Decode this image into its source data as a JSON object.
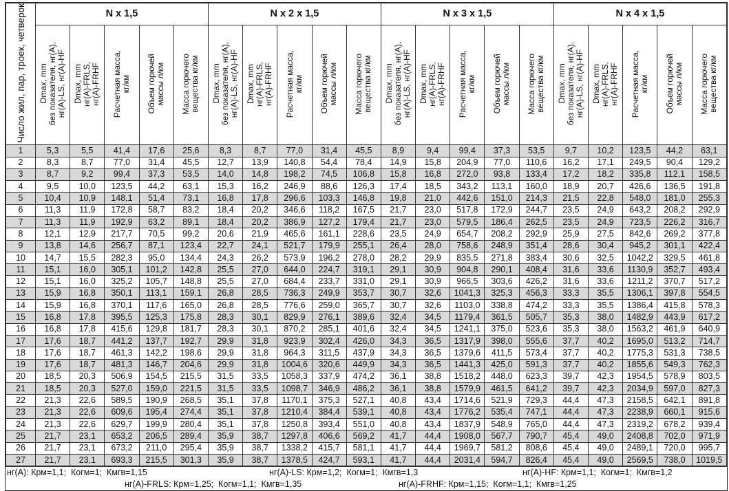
{
  "table": {
    "first_header": "Число жил, пар, троек, четверок",
    "groups": [
      "N x 1,5",
      "N x 2 x 1,5",
      "N x 3 x 1,5",
      "N x 4 x 1,5"
    ],
    "sub_headers": [
      "Dmax, mm\nбез показателя, нг(А),\nнг(А)-LS, нг(А)-HF",
      "Dmax, mm\nнг(А)-FRLS,\nнг(А)-FRHF",
      "Расчетная масса,\nкг/км",
      "Объем горючей\nмассы л/км",
      "Масса горючего\nвещества кг/км"
    ],
    "shade_color": "#d9d9d9",
    "rows": [
      [
        "1",
        "5,3",
        "5,5",
        "41,4",
        "17,6",
        "25,6",
        "8,3",
        "8,7",
        "77,0",
        "31,4",
        "45,5",
        "8,9",
        "9,4",
        "99,4",
        "37,3",
        "53,5",
        "9,7",
        "10,2",
        "123,5",
        "44,2",
        "63,1"
      ],
      [
        "2",
        "8,3",
        "8,7",
        "77,0",
        "31,4",
        "45,5",
        "12,7",
        "13,9",
        "140,8",
        "54,4",
        "78,4",
        "14,9",
        "15,8",
        "204,9",
        "77,0",
        "110,6",
        "16,2",
        "17,1",
        "249,5",
        "90,4",
        "129,2"
      ],
      [
        "3",
        "8,7",
        "9,2",
        "99,4",
        "37,3",
        "53,5",
        "14,0",
        "14,8",
        "198,2",
        "74,5",
        "106,8",
        "15,8",
        "16,8",
        "272,0",
        "93,8",
        "133,4",
        "17,2",
        "18,2",
        "335,8",
        "112,1",
        "158,5"
      ],
      [
        "4",
        "9,5",
        "10,0",
        "123,5",
        "44,2",
        "63,1",
        "15,3",
        "16,2",
        "246,9",
        "88,6",
        "126,3",
        "17,4",
        "18,5",
        "343,2",
        "113,1",
        "160,0",
        "18,9",
        "20,7",
        "426,6",
        "136,5",
        "191,8"
      ],
      [
        "5",
        "10,4",
        "10,9",
        "148,1",
        "51,4",
        "73,1",
        "16,8",
        "17,8",
        "296,6",
        "103,3",
        "146,8",
        "19,8",
        "21,0",
        "442,6",
        "151,0",
        "214,3",
        "21,5",
        "22,8",
        "548,0",
        "181,0",
        "255,3"
      ],
      [
        "6",
        "11,3",
        "11,9",
        "172,8",
        "58,7",
        "83,2",
        "18,4",
        "20,2",
        "346,6",
        "118,2",
        "167,5",
        "21,7",
        "23,0",
        "517,8",
        "172,9",
        "244,7",
        "23,5",
        "24,9",
        "643,2",
        "208,2",
        "292,9"
      ],
      [
        "7",
        "11,3",
        "11,9",
        "192,9",
        "63,2",
        "89,1",
        "18,4",
        "20,2",
        "386,9",
        "127,2",
        "179,4",
        "21,7",
        "23,0",
        "579,5",
        "186,4",
        "262,5",
        "23,5",
        "24,9",
        "723,5",
        "226,2",
        "316,7"
      ],
      [
        "8",
        "12,1",
        "12,9",
        "217,7",
        "70,5",
        "99,2",
        "20,6",
        "21,9",
        "465,6",
        "161,1",
        "228,6",
        "23,5",
        "24,9",
        "654,7",
        "208,2",
        "292,9",
        "25,9",
        "27,5",
        "842,6",
        "269,2",
        "377,8"
      ],
      [
        "9",
        "13,8",
        "14,6",
        "256,7",
        "87,1",
        "123,4",
        "22,7",
        "24,1",
        "521,7",
        "179,9",
        "255,1",
        "26,4",
        "28,0",
        "758,6",
        "248,9",
        "351,4",
        "28,6",
        "30,4",
        "945,2",
        "301,1",
        "422,4"
      ],
      [
        "10",
        "14,7",
        "15,5",
        "282,3",
        "95,0",
        "134,4",
        "24,3",
        "26,2",
        "573,9",
        "196,2",
        "278,0",
        "28,2",
        "29,9",
        "835,5",
        "271,8",
        "383,4",
        "30,6",
        "32,5",
        "1042,2",
        "329,5",
        "461,8"
      ],
      [
        "11",
        "15,1",
        "16,0",
        "305,1",
        "101,2",
        "142,8",
        "25,5",
        "27,0",
        "644,0",
        "224,7",
        "319,1",
        "29,1",
        "30,9",
        "904,8",
        "290,1",
        "408,4",
        "31,6",
        "33,6",
        "1130,9",
        "352,7",
        "493,4"
      ],
      [
        "12",
        "15,1",
        "16,0",
        "325,2",
        "105,7",
        "148,8",
        "25,5",
        "27,0",
        "684,4",
        "233,7",
        "331,0",
        "29,1",
        "30,9",
        "966,5",
        "303,6",
        "426,2",
        "31,6",
        "33,6",
        "1211,2",
        "370,7",
        "517,2"
      ],
      [
        "13",
        "15,9",
        "16,8",
        "350,1",
        "113,1",
        "159,1",
        "26,8",
        "28,5",
        "736,3",
        "249,9",
        "353,7",
        "30,7",
        "32,6",
        "1041,3",
        "325,3",
        "456,3",
        "33,3",
        "35,5",
        "1306,1",
        "397,8",
        "554,5"
      ],
      [
        "14",
        "15,9",
        "16,8",
        "370,1",
        "117,6",
        "165,0",
        "26,8",
        "28,5",
        "776,6",
        "259,0",
        "365,7",
        "30,7",
        "32,6",
        "1103,0",
        "338,8",
        "474,2",
        "33,3",
        "35,5",
        "1386,4",
        "415,8",
        "578,3"
      ],
      [
        "15",
        "16,8",
        "17,8",
        "395,5",
        "125,3",
        "175,8",
        "28,3",
        "30,1",
        "829,9",
        "276,1",
        "389,6",
        "32,4",
        "34,5",
        "1179,4",
        "361,5",
        "505,7",
        "35,3",
        "38,0",
        "1482,9",
        "443,9",
        "617,2"
      ],
      [
        "16",
        "16,8",
        "17,8",
        "415,6",
        "129,8",
        "181,7",
        "28,3",
        "30,1",
        "870,2",
        "285,1",
        "401,6",
        "32,4",
        "34,5",
        "1241,1",
        "375,0",
        "523,6",
        "35,3",
        "38,0",
        "1563,2",
        "461,9",
        "640,9"
      ],
      [
        "17",
        "17,6",
        "18,7",
        "441,2",
        "137,7",
        "192,7",
        "29,9",
        "31,8",
        "923,9",
        "302,4",
        "426,0",
        "34,3",
        "36,5",
        "1317,9",
        "398,0",
        "555,6",
        "37,7",
        "40,2",
        "1695,0",
        "513,2",
        "714,7"
      ],
      [
        "18",
        "17,6",
        "18,7",
        "461,3",
        "142,2",
        "198,6",
        "29,9",
        "31,8",
        "964,3",
        "311,5",
        "437,9",
        "34,3",
        "36,5",
        "1379,6",
        "411,5",
        "573,4",
        "37,7",
        "40,2",
        "1775,3",
        "531,3",
        "738,5"
      ],
      [
        "19",
        "17,6",
        "18,7",
        "481,3",
        "146,7",
        "204,6",
        "29,9",
        "31,8",
        "1004,6",
        "320,6",
        "449,9",
        "34,3",
        "36,5",
        "1441,3",
        "425,0",
        "591,3",
        "37,7",
        "40,2",
        "1855,6",
        "549,3",
        "762,3"
      ],
      [
        "20",
        "18,5",
        "20,3",
        "506,9",
        "154,5",
        "215,5",
        "31,5",
        "33,5",
        "1058,3",
        "337,9",
        "474,2",
        "36,1",
        "38,8",
        "1518,2",
        "448,0",
        "623,3",
        "39,7",
        "42,3",
        "1954,5",
        "578,9",
        "803,5"
      ],
      [
        "21",
        "18,5",
        "20,3",
        "527,0",
        "159,0",
        "221,5",
        "31,5",
        "33,5",
        "1098,7",
        "346,9",
        "486,2",
        "36,1",
        "38,8",
        "1579,9",
        "461,5",
        "641,2",
        "39,7",
        "42,3",
        "2034,9",
        "597,0",
        "827,3"
      ],
      [
        "22",
        "21,3",
        "22,6",
        "589,5",
        "190,9",
        "268,5",
        "35,1",
        "37,8",
        "1170,1",
        "375,3",
        "527,1",
        "40,8",
        "43,4",
        "1714,6",
        "521,9",
        "729,3",
        "44,4",
        "47,3",
        "2158,5",
        "642,1",
        "891,8"
      ],
      [
        "23",
        "21,3",
        "22,6",
        "609,6",
        "195,4",
        "274,4",
        "35,1",
        "37,8",
        "1210,4",
        "384,4",
        "539,1",
        "40,8",
        "43,4",
        "1776,2",
        "535,4",
        "747,1",
        "44,4",
        "47,3",
        "2238,9",
        "660,1",
        "915,6"
      ],
      [
        "24",
        "21,3",
        "22,6",
        "629,7",
        "199,9",
        "280,4",
        "35,1",
        "37,8",
        "1250,8",
        "393,4",
        "551,0",
        "40,8",
        "43,4",
        "1837,9",
        "548,9",
        "765,0",
        "44,4",
        "47,3",
        "2319,2",
        "678,2",
        "939,4"
      ],
      [
        "25",
        "21,7",
        "23,1",
        "653,2",
        "206,5",
        "289,4",
        "35,9",
        "38,7",
        "1297,8",
        "406,6",
        "569,2",
        "41,7",
        "44,4",
        "1908,0",
        "567,7",
        "790,7",
        "45,4",
        "49,0",
        "2408,8",
        "702,0",
        "971,9"
      ],
      [
        "26",
        "21,7",
        "23,1",
        "673,2",
        "211,0",
        "295,4",
        "35,9",
        "38,7",
        "1338,2",
        "415,7",
        "581,1",
        "41,7",
        "44,4",
        "1969,7",
        "581,2",
        "808,6",
        "45,4",
        "49,0",
        "2489,1",
        "720,0",
        "995,7"
      ],
      [
        "27",
        "21,7",
        "23,1",
        "693,3",
        "215,5",
        "301,3",
        "35,9",
        "38,7",
        "1378,5",
        "424,7",
        "593,1",
        "41,7",
        "44,4",
        "2031,4",
        "594,7",
        "826,4",
        "45,4",
        "49,0",
        "2569,5",
        "738,0",
        "1019,5"
      ]
    ]
  },
  "footer": {
    "line1": [
      "нг(А): Крм=1,1;  Когм=1;  Кмгв=1,15",
      "нг(А)-LS: Крм=1,2;  Когм=1;  Кмгв=1,3",
      "нг(А)-HF: Крм=1,1;  Когм=1;  Кмгв=1,2"
    ],
    "line2": [
      "нг(А)-FRLS: Крм=1,25;  Когм=1,1;  Кмгв=1,35",
      "нг(А)-FRHF: Крм=1,15;  Когм=1,1;  Кмгв=1,25"
    ]
  }
}
